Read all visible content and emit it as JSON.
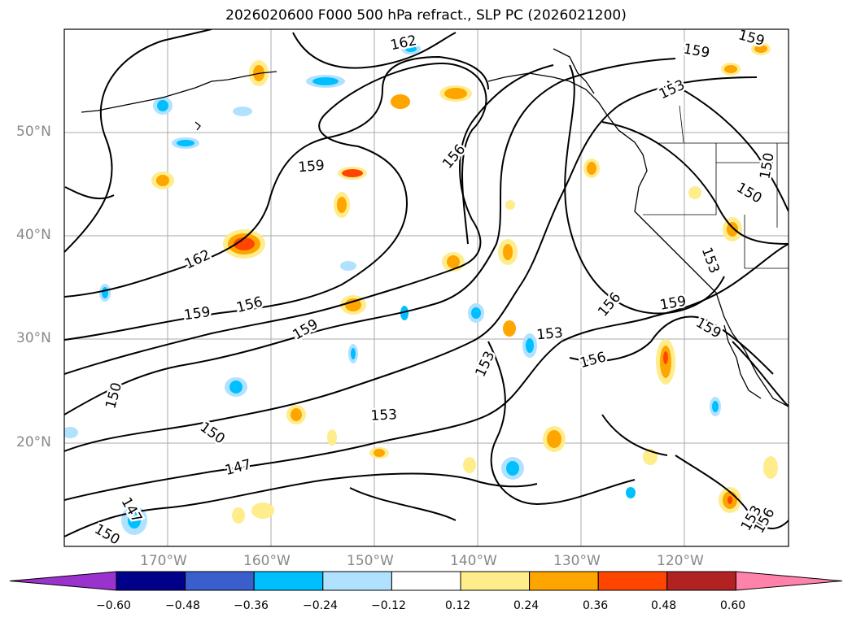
{
  "title": "2026020600 F000 500 hPa refract., SLP PC (2026021200)",
  "lat_labels": [
    "50°N",
    "40°N",
    "30°N",
    "20°N"
  ],
  "lon_labels": [
    "170°W",
    "160°W",
    "150°W",
    "140°W",
    "130°W",
    "120°W"
  ],
  "colorbar": {
    "ticks": [
      "−0.60",
      "−0.48",
      "−0.36",
      "−0.24",
      "−0.12",
      "0.12",
      "0.24",
      "0.36",
      "0.48",
      "0.60"
    ],
    "colors": [
      "#9a32cd",
      "#00008b",
      "#3a5fcd",
      "#00bfff",
      "#b0e2ff",
      "#ffffff",
      "#ffec8b",
      "#ffa500",
      "#ff4500",
      "#b22222",
      "#ff82ab"
    ]
  },
  "contour_labels": [
    "162",
    "159",
    "159",
    "153",
    "156",
    "150",
    "150",
    "159",
    "153",
    "162",
    "156",
    "159",
    "159",
    "153",
    "156",
    "156",
    "159",
    "159",
    "153",
    "150",
    "150",
    "153",
    "147",
    "147",
    "150",
    "153",
    "156"
  ]
}
